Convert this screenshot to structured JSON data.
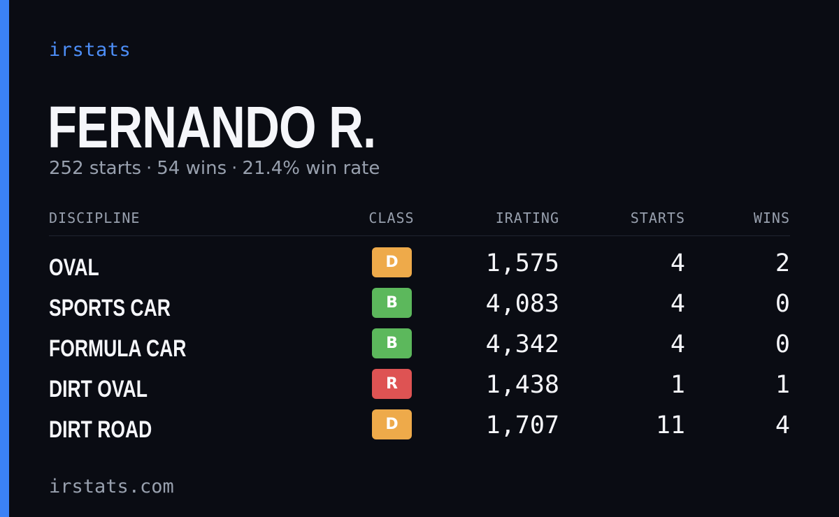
{
  "brand": "irstats",
  "driver": {
    "name": "FERNANDO R.",
    "starts": "252 starts",
    "wins": "54 wins",
    "win_rate": "21.4% win rate",
    "separator": "·"
  },
  "table": {
    "headers": {
      "discipline": "DISCIPLINE",
      "class": "CLASS",
      "irating": "IRATING",
      "starts": "STARTS",
      "wins": "WINS"
    },
    "rows": [
      {
        "discipline": "OVAL",
        "class": "D",
        "class_color": "#eeaa4a",
        "irating": "1,575",
        "starts": "4",
        "wins": "2"
      },
      {
        "discipline": "SPORTS CAR",
        "class": "B",
        "class_color": "#5cb85c",
        "irating": "4,083",
        "starts": "4",
        "wins": "0"
      },
      {
        "discipline": "FORMULA CAR",
        "class": "B",
        "class_color": "#5cb85c",
        "irating": "4,342",
        "starts": "4",
        "wins": "0"
      },
      {
        "discipline": "DIRT OVAL",
        "class": "R",
        "class_color": "#de5353",
        "irating": "1,438",
        "starts": "1",
        "wins": "1"
      },
      {
        "discipline": "DIRT ROAD",
        "class": "D",
        "class_color": "#eeaa4a",
        "irating": "1,707",
        "starts": "11",
        "wins": "4"
      }
    ]
  },
  "footer": "irstats.com",
  "colors": {
    "background": "#0a0c13",
    "accent": "#3b82f6",
    "brand_text": "#4d8ef7",
    "muted_text": "#98a0ae"
  }
}
